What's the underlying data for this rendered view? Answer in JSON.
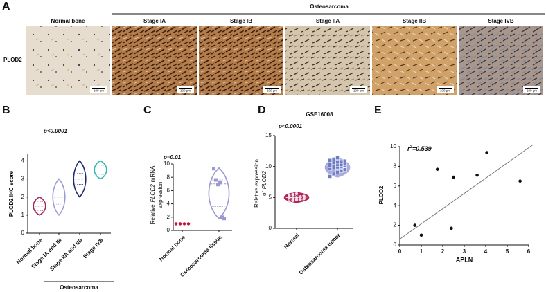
{
  "panel_a": {
    "label": "A",
    "group_label": "Osteosarcoma",
    "row_label": "PLOD2",
    "images": [
      {
        "label": "Normal bone",
        "scale": "100 μm",
        "texture": "bone"
      },
      {
        "label": "Stage IA",
        "scale": "100 μm",
        "texture": "dense"
      },
      {
        "label": "Stage IB",
        "scale": "100 μm",
        "texture": "dense"
      },
      {
        "label": "Stage IIA",
        "scale": "100 μm",
        "texture": "light"
      },
      {
        "label": "Stage IIB",
        "scale": "100 μm",
        "texture": "orange"
      },
      {
        "label": "Stage IVB",
        "scale": "100 μm",
        "texture": "blue"
      }
    ]
  },
  "chart_data": [
    {
      "type": "violin",
      "panel": "B",
      "ylabel": "PLOD2 IHC score",
      "annotation": "p<0.0001",
      "categories": [
        "Normal bone",
        "Stage IA and IB",
        "Stage IIA and IIB",
        "Stage IVB"
      ],
      "group_label": "Osteosarcoma",
      "ylim": [
        0,
        4.4
      ],
      "yticks": [
        0,
        1,
        2,
        3,
        4
      ],
      "filled": false,
      "violins": [
        {
          "color": "#a52a5c",
          "min": 1,
          "q1": 1.25,
          "median": 1.5,
          "q3": 1.75,
          "max": 2
        },
        {
          "color": "#9d9bd4",
          "min": 1,
          "q1": 1.6,
          "median": 2,
          "q3": 2.4,
          "max": 3
        },
        {
          "color": "#1f2a6a",
          "min": 2,
          "q1": 2.7,
          "median": 3,
          "q3": 3.3,
          "max": 4
        },
        {
          "color": "#3bb5ad",
          "min": 3,
          "q1": 3.25,
          "median": 3.5,
          "q3": 3.75,
          "max": 4
        }
      ]
    },
    {
      "type": "violin",
      "panel": "C",
      "ylabel": {
        "before": "Relative",
        "gene": "PLOD2",
        "after": "mRNA",
        "line2": "expression"
      },
      "annotation": "p=0.01",
      "categories": [
        "Normal bone",
        "Osteosarcoma tissue"
      ],
      "ylim": [
        0,
        10
      ],
      "yticks": [
        0,
        2,
        4,
        6,
        8,
        10
      ],
      "filled": false,
      "violins": [
        {
          "color": "#c0143c",
          "points": [
            1,
            1,
            1,
            1
          ],
          "marker": "circle",
          "point_color": "#c0143c"
        },
        {
          "color": "#9a9ad0",
          "min": 1.8,
          "q1": 3.6,
          "median": 7.0,
          "q3": 7.6,
          "max": 9.4,
          "points": [
            9.3,
            7.6,
            6.9,
            7.2,
            2.0,
            1.8
          ],
          "marker": "square",
          "point_color": "#9a9ad0"
        }
      ]
    },
    {
      "type": "violin",
      "panel": "D",
      "title": "GSE16008",
      "ylabel": {
        "before": "Relative expression",
        "line2_before": "of",
        "gene": "PLOD2"
      },
      "annotation": "p<0.0001",
      "categories": [
        "Normal",
        "Osteosarcoma tumor"
      ],
      "ylim": [
        0,
        15
      ],
      "yticks": [
        0,
        5,
        10,
        15
      ],
      "filled": true,
      "violins": [
        {
          "color": "#b0245a",
          "min": 4.2,
          "q1": 4.6,
          "median": 5.0,
          "q3": 5.3,
          "max": 5.8,
          "points": [
            4.3,
            4.5,
            4.6,
            4.7,
            4.8,
            4.9,
            5.0,
            5.0,
            5.1,
            5.2,
            5.3,
            5.5,
            5.6
          ],
          "marker": "circle",
          "point_color": "#f4dfe6"
        },
        {
          "color": "#a7acdc",
          "min": 8.3,
          "q1": 9.6,
          "median": 10.2,
          "q3": 10.6,
          "max": 11.4,
          "points": [
            8.4,
            8.8,
            9.1,
            9.3,
            9.5,
            9.6,
            9.8,
            9.9,
            10.0,
            10.1,
            10.1,
            10.2,
            10.3,
            10.3,
            10.4,
            10.5,
            10.6,
            10.7,
            10.8,
            10.9,
            11.0,
            11.2,
            11.4
          ],
          "marker": "square",
          "point_color": "#6f7cc4"
        }
      ]
    },
    {
      "type": "scatter",
      "panel": "E",
      "xlabel": "APLN",
      "ylabel": "PLOD2",
      "annotation": {
        "base": "r",
        "sup": "2",
        "rest": "=0.539"
      },
      "x": [
        0.7,
        1.0,
        1.75,
        2.4,
        2.5,
        3.6,
        4.05,
        5.6
      ],
      "y": [
        2.0,
        1.0,
        7.7,
        1.7,
        6.9,
        7.1,
        9.4,
        6.5
      ],
      "color": "#111111",
      "fit_line": {
        "x": [
          0,
          6.2
        ],
        "y": [
          0.6,
          10.2
        ],
        "color": "#777777"
      },
      "xlim": [
        0,
        6
      ],
      "ylim": [
        0,
        10
      ],
      "xticks": [
        0,
        1,
        2,
        3,
        4,
        5,
        6
      ],
      "yticks": [
        0,
        2,
        4,
        6,
        8,
        10
      ]
    }
  ]
}
